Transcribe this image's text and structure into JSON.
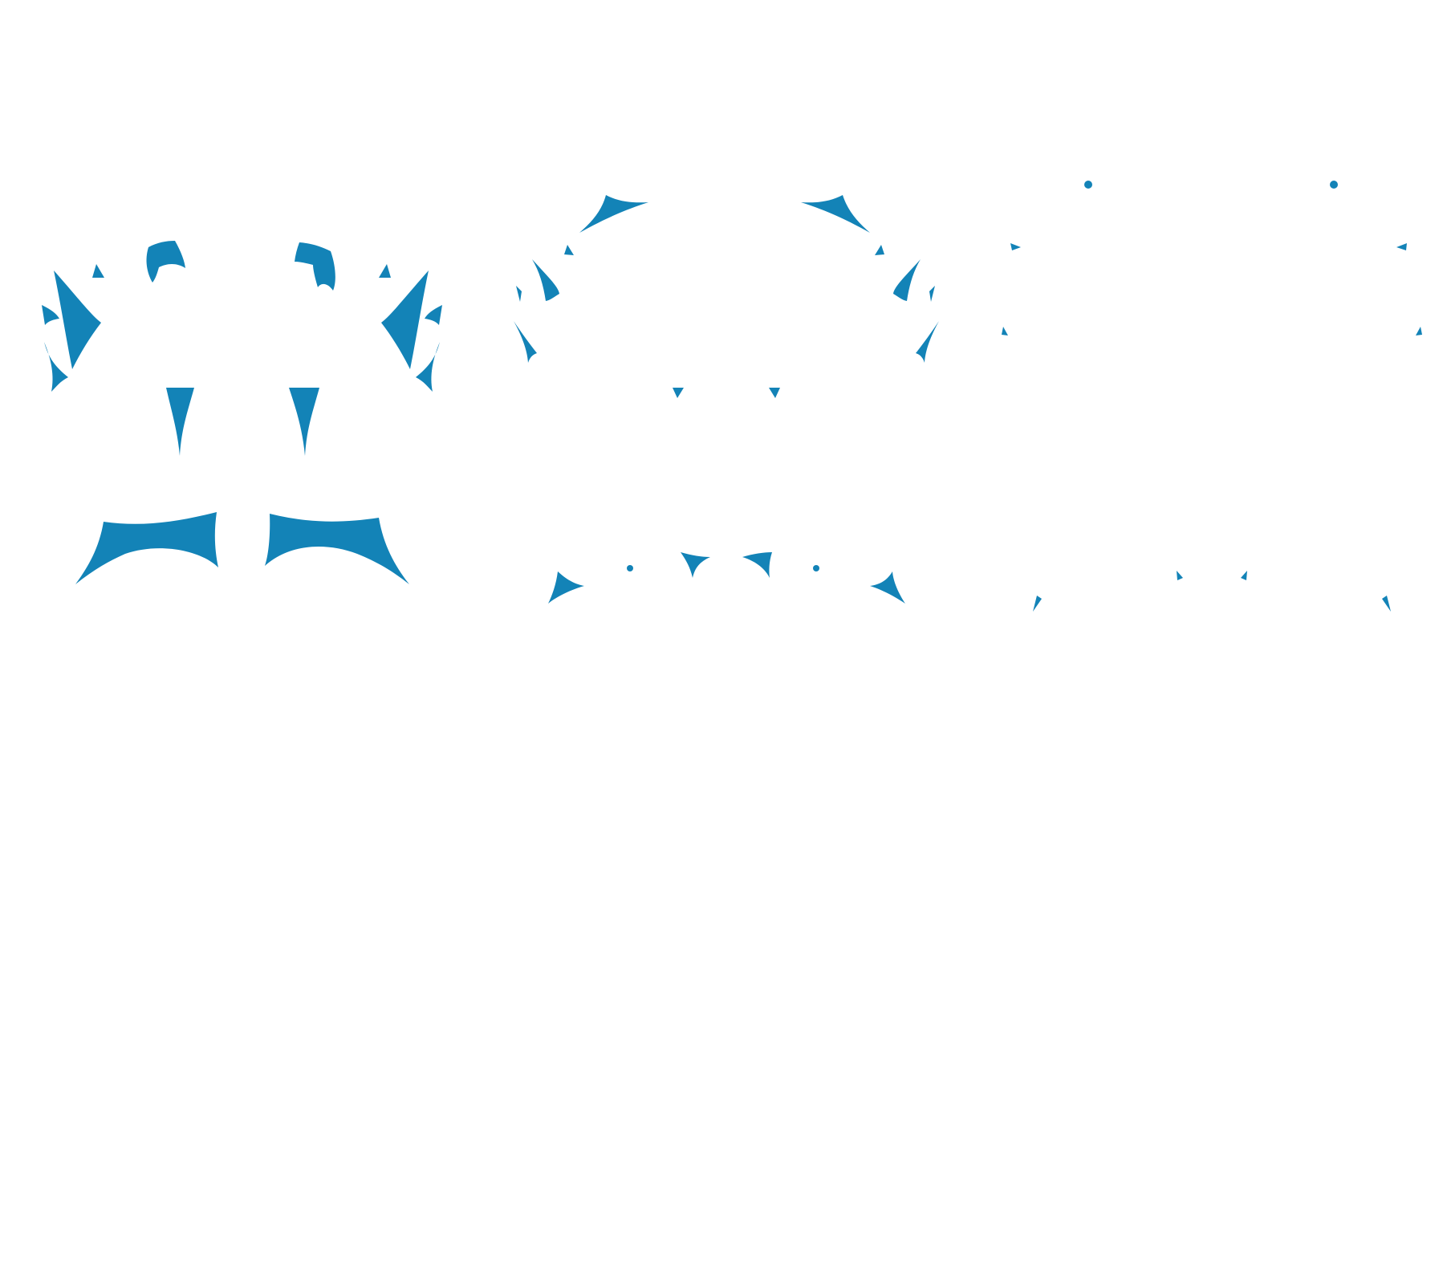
{
  "canvas": {
    "background_color": "#ffffff"
  },
  "pattern": {
    "fill_color": "#1383b7",
    "groups": [
      {
        "id": "group-1"
      },
      {
        "id": "group-2"
      },
      {
        "id": "group-3"
      }
    ]
  }
}
